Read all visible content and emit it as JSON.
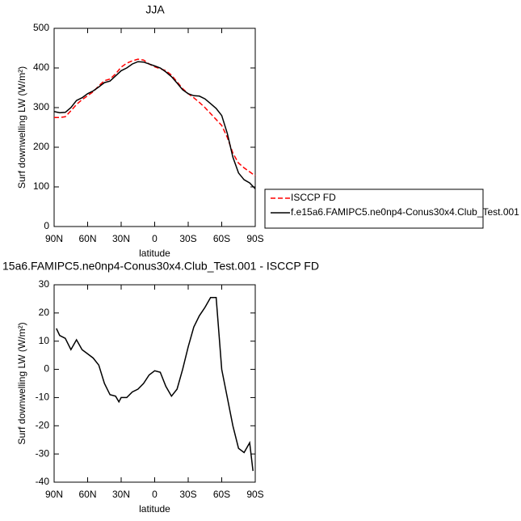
{
  "chart_data": [
    {
      "type": "line",
      "title": "JJA",
      "x_label": "latitude",
      "y_label": "Surf downwelling LW (W/m²)",
      "x": [
        90,
        85,
        80,
        75,
        70,
        65,
        60,
        55,
        50,
        45,
        40,
        35,
        30,
        25,
        20,
        15,
        10,
        5,
        0,
        -5,
        -10,
        -15,
        -20,
        -25,
        -30,
        -35,
        -40,
        -45,
        -50,
        -55,
        -60,
        -65,
        -70,
        -75,
        -80,
        -85,
        -90
      ],
      "series": [
        {
          "name": "ISCCP FD",
          "color": "#ff0000",
          "line_style": "dashed",
          "values": [
            275,
            275,
            277,
            292,
            308,
            320,
            330,
            340,
            355,
            368,
            372,
            385,
            402,
            412,
            418,
            422,
            420,
            410,
            403,
            398,
            393,
            382,
            365,
            348,
            335,
            325,
            313,
            300,
            285,
            270,
            255,
            225,
            185,
            160,
            148,
            138,
            128
          ]
        },
        {
          "name": "f.e15a6.FAMIPC5.ne0np4-Conus30x4.Club_Test.001",
          "color": "#000000",
          "line_style": "solid",
          "values": [
            290,
            287,
            288,
            300,
            318,
            325,
            335,
            342,
            352,
            363,
            367,
            380,
            393,
            400,
            410,
            416,
            415,
            410,
            405,
            400,
            390,
            378,
            362,
            345,
            335,
            330,
            329,
            322,
            310,
            298,
            280,
            235,
            175,
            135,
            118,
            110,
            95
          ]
        }
      ],
      "legend": "right",
      "xlim": [
        90,
        -90
      ],
      "xticks": [
        {
          "value": 90,
          "label": "90N"
        },
        {
          "value": 60,
          "label": "60N"
        },
        {
          "value": 30,
          "label": "30N"
        },
        0,
        {
          "value": -30,
          "label": "30S"
        },
        {
          "value": -60,
          "label": "60S"
        },
        {
          "value": -90,
          "label": "90S"
        }
      ],
      "ylim": [
        0,
        500
      ],
      "yticks": [
        0,
        100,
        200,
        300,
        400,
        500
      ]
    },
    {
      "type": "line",
      "title": "15a6.FAMIPC5.ne0np4-Conus30x4.Club_Test.001 - ISCCP FD",
      "x_label": "latitude",
      "y_label": "Surf downwelling LW (W/m²)",
      "x": [
        88,
        85,
        80,
        75,
        70,
        65,
        60,
        55,
        50,
        45,
        40,
        35,
        32,
        30,
        25,
        20,
        15,
        10,
        5,
        0,
        -5,
        -10,
        -15,
        -20,
        -25,
        -30,
        -35,
        -40,
        -45,
        -50,
        -55,
        -60,
        -65,
        -70,
        -75,
        -80,
        -85,
        -88
      ],
      "values": [
        14.5,
        12,
        11,
        7,
        10.5,
        7,
        5.5,
        4,
        1.5,
        -5,
        -9,
        -9.5,
        -11.5,
        -10,
        -10,
        -8,
        -7,
        -5,
        -2,
        -0.5,
        -1,
        -6,
        -9.5,
        -7,
        0,
        8,
        15,
        19,
        22,
        25.5,
        25.5,
        0,
        -10,
        -20,
        -28,
        -29.5,
        -26,
        -36
      ],
      "color": "#000000",
      "xlim": [
        90,
        -90
      ],
      "xticks": [
        {
          "value": 90,
          "label": "90N"
        },
        {
          "value": 60,
          "label": "60N"
        },
        {
          "value": 30,
          "label": "30N"
        },
        0,
        {
          "value": -30,
          "label": "30S"
        },
        {
          "value": -60,
          "label": "60S"
        },
        {
          "value": -90,
          "label": "90S"
        }
      ],
      "ylim": [
        -40,
        30
      ],
      "yticks": [
        -40,
        -30,
        -20,
        -10,
        0,
        10,
        20,
        30
      ]
    }
  ]
}
